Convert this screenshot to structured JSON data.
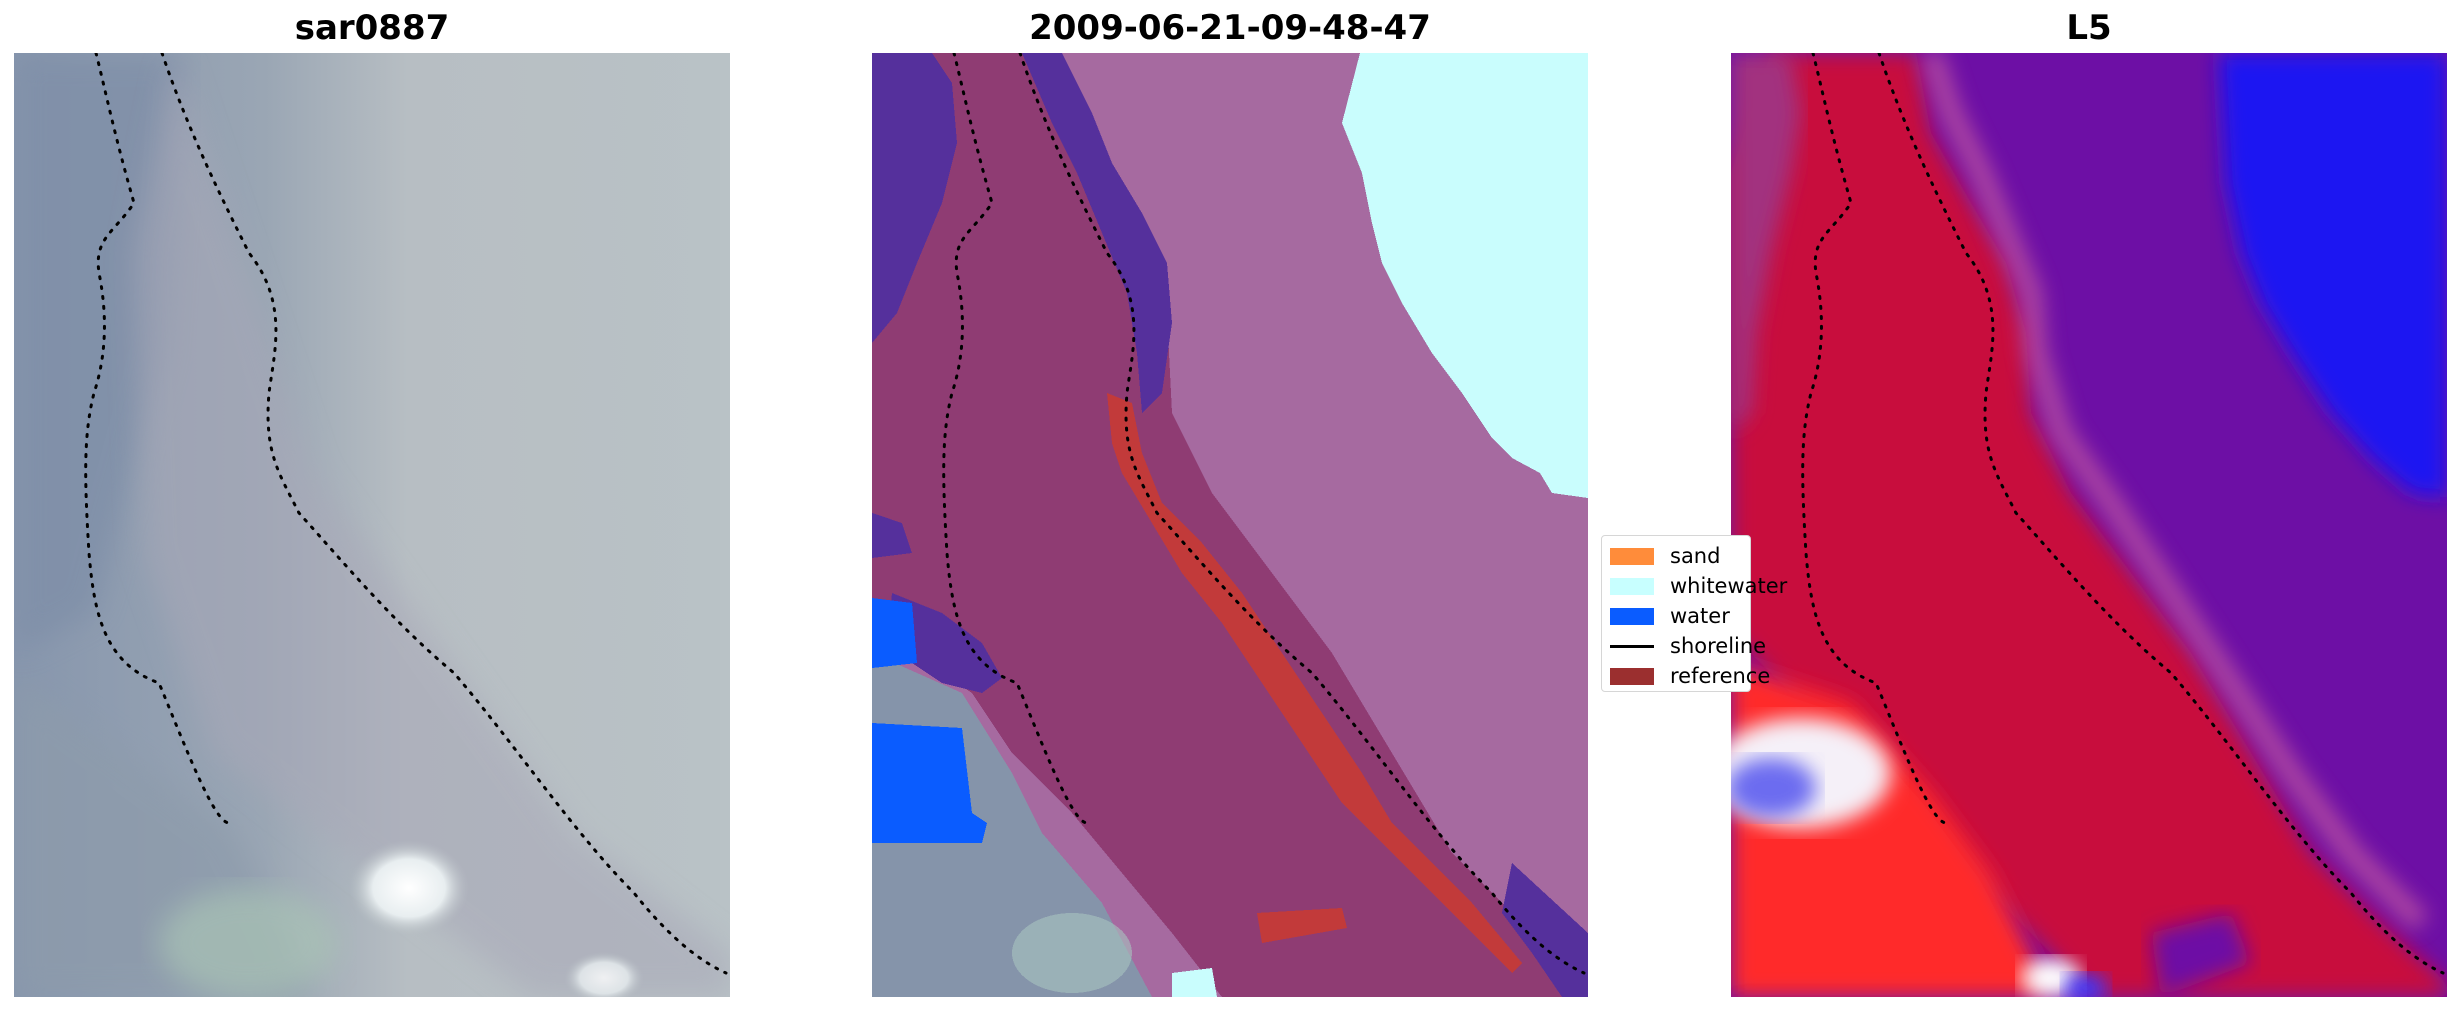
{
  "titles": {
    "left": "sar0887",
    "middle": "2009-06-21-09-48-47",
    "right": "L5"
  },
  "legend": {
    "items": [
      {
        "label": "sand",
        "color": "#ff8c3a",
        "kind": "patch"
      },
      {
        "label": "whitewater",
        "color": "#c8ffff",
        "kind": "patch"
      },
      {
        "label": "water",
        "color": "#0a5cff",
        "kind": "patch"
      },
      {
        "label": "shoreline",
        "color": "#000000",
        "kind": "line"
      },
      {
        "label": "reference",
        "color": "#9b2f2f",
        "kind": "patch"
      }
    ]
  },
  "colors": {
    "satellite_base": "#b3bcc0",
    "satellite_dark": "#7b8ea6",
    "classified_land": "#a66aa0",
    "classified_band": "#8c3a6e",
    "classified_edge": "#5a2e96",
    "index_high": "#c8103c",
    "index_low": "#6a0ea8",
    "index_deep": "#1a10ff"
  }
}
